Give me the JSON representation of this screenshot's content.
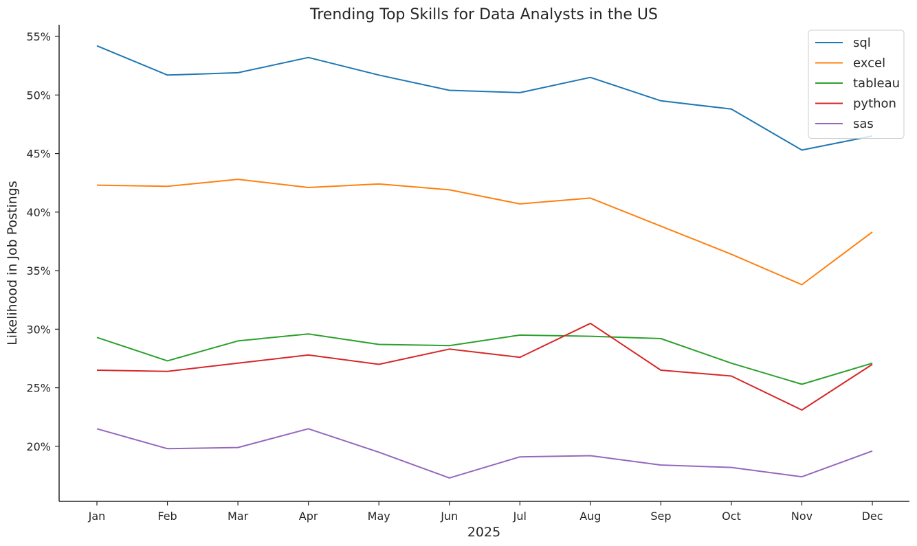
{
  "chart_data": {
    "type": "line",
    "title": "Trending Top Skills for Data Analysts in the US",
    "xlabel": "2025",
    "ylabel": "Likelihood in Job Postings",
    "categories": [
      "Jan",
      "Feb",
      "Mar",
      "Apr",
      "May",
      "Jun",
      "Jul",
      "Aug",
      "Sep",
      "Oct",
      "Nov",
      "Dec"
    ],
    "ylim": [
      15.3,
      56.0
    ],
    "yticks": [
      20,
      25,
      30,
      35,
      40,
      45,
      50,
      55
    ],
    "ytick_format": "percent",
    "grid": false,
    "legend_position": "top-right",
    "series": [
      {
        "name": "sql",
        "color": "#1f77b4",
        "values": [
          54.2,
          51.7,
          51.9,
          53.2,
          51.7,
          50.4,
          50.2,
          51.5,
          49.5,
          48.8,
          45.3,
          46.5
        ]
      },
      {
        "name": "excel",
        "color": "#ff7f0e",
        "values": [
          42.3,
          42.2,
          42.8,
          42.1,
          42.4,
          41.9,
          40.7,
          41.2,
          38.8,
          36.4,
          33.8,
          38.3
        ]
      },
      {
        "name": "tableau",
        "color": "#2ca02c",
        "values": [
          29.3,
          27.3,
          29.0,
          29.6,
          28.7,
          28.6,
          29.5,
          29.4,
          29.2,
          27.1,
          25.3,
          27.1
        ]
      },
      {
        "name": "python",
        "color": "#d62728",
        "values": [
          26.5,
          26.4,
          27.1,
          27.8,
          27.0,
          28.3,
          27.6,
          30.5,
          26.5,
          26.0,
          23.1,
          27.0
        ]
      },
      {
        "name": "sas",
        "color": "#9467bd",
        "values": [
          21.5,
          19.8,
          19.9,
          21.5,
          19.5,
          17.3,
          19.1,
          19.2,
          18.4,
          18.2,
          17.4,
          19.6
        ]
      }
    ]
  }
}
